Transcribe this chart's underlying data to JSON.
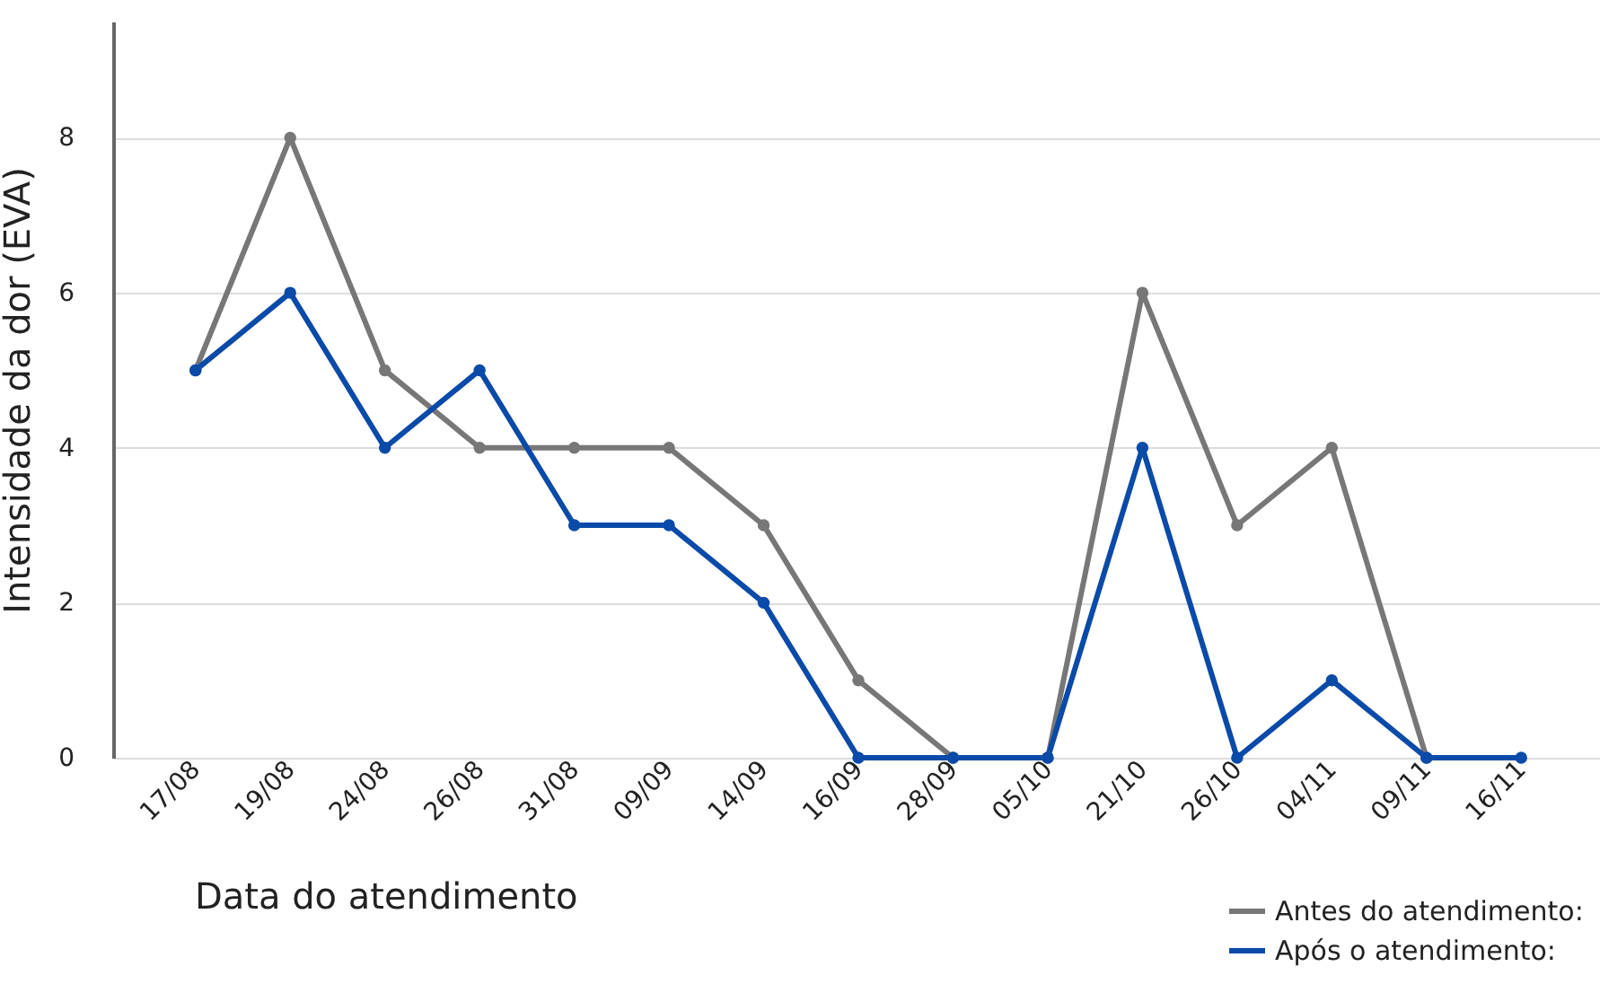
{
  "chart_data": {
    "type": "line",
    "xlabel": "Data do atendimento",
    "ylabel": "Intensidade da dor (EVA)",
    "categories": [
      "17/08",
      "19/08",
      "24/08",
      "26/08",
      "31/08",
      "09/09",
      "14/09",
      "16/09",
      "28/09",
      "05/10",
      "21/10",
      "26/10",
      "04/11",
      "09/11",
      "16/11"
    ],
    "series": [
      {
        "name": "Antes do atendimento:",
        "color": "#777777",
        "values": [
          5,
          8,
          5,
          4,
          4,
          4,
          3,
          1,
          0,
          0,
          6,
          3,
          4,
          0,
          null
        ]
      },
      {
        "name": "Após o atendimento:",
        "color": "#0a4aa8",
        "values": [
          5,
          6,
          4,
          5,
          3,
          3,
          2,
          0,
          0,
          0,
          4,
          0,
          1,
          0,
          0
        ]
      }
    ],
    "ylim": [
      0,
      9.5
    ],
    "yticks": [
      0,
      2,
      4,
      6,
      8
    ],
    "grid": "y",
    "legend": "bottom right",
    "marker": "circle",
    "line_style": "solid"
  }
}
